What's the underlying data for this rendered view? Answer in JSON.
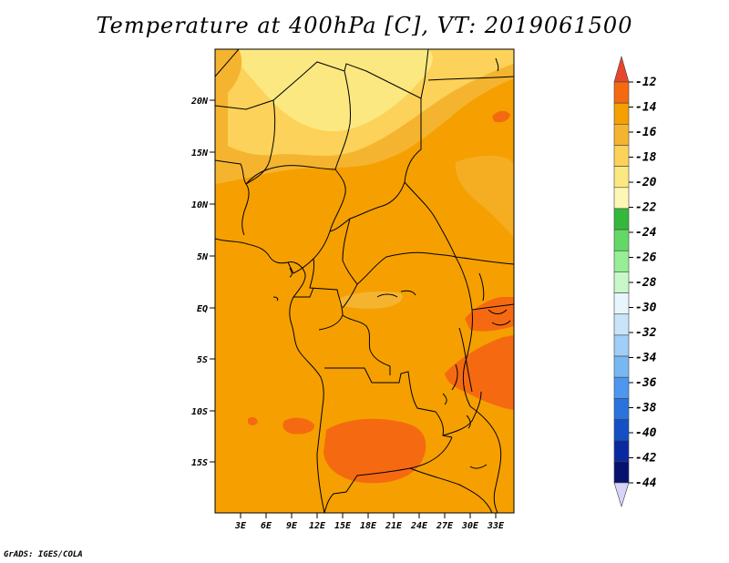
{
  "title": "Temperature at 400hPa [C], VT: 2019061500",
  "credit": "GrADS: IGES/COLA",
  "map": {
    "lat_labels": [
      "20N",
      "15N",
      "10N",
      "5N",
      "EQ",
      "5S",
      "10S",
      "15S"
    ],
    "lon_labels": [
      "3E",
      "6E",
      "9E",
      "12E",
      "15E",
      "18E",
      "21E",
      "24E",
      "27E",
      "30E",
      "33E"
    ]
  },
  "colorbar": {
    "labels": [
      "-12",
      "-14",
      "-16",
      "-18",
      "-20",
      "-22",
      "-24",
      "-26",
      "-28",
      "-30",
      "-32",
      "-34",
      "-36",
      "-38",
      "-40",
      "-42",
      "-44"
    ],
    "colors": [
      "#e8462a",
      "#f56a10",
      "#f5a000",
      "#f5b430",
      "#fcd25a",
      "#fce880",
      "#fef6b4",
      "#34b83c",
      "#64d864",
      "#96ee96",
      "#c8f8c8",
      "#e6f6fc",
      "#c8e4f8",
      "#a0cef6",
      "#78b8f2",
      "#4e96ee",
      "#2a72dc",
      "#1450c4",
      "#0a28a0",
      "#06126e",
      "#d8d4f8"
    ]
  },
  "colors": {
    "base_field": "#f5a000",
    "warm_field": "#f56a10",
    "cool_field": "#f5b430",
    "cooler_field": "#fcd25a",
    "coolest_field": "#fce880",
    "boundary": "#000000"
  }
}
